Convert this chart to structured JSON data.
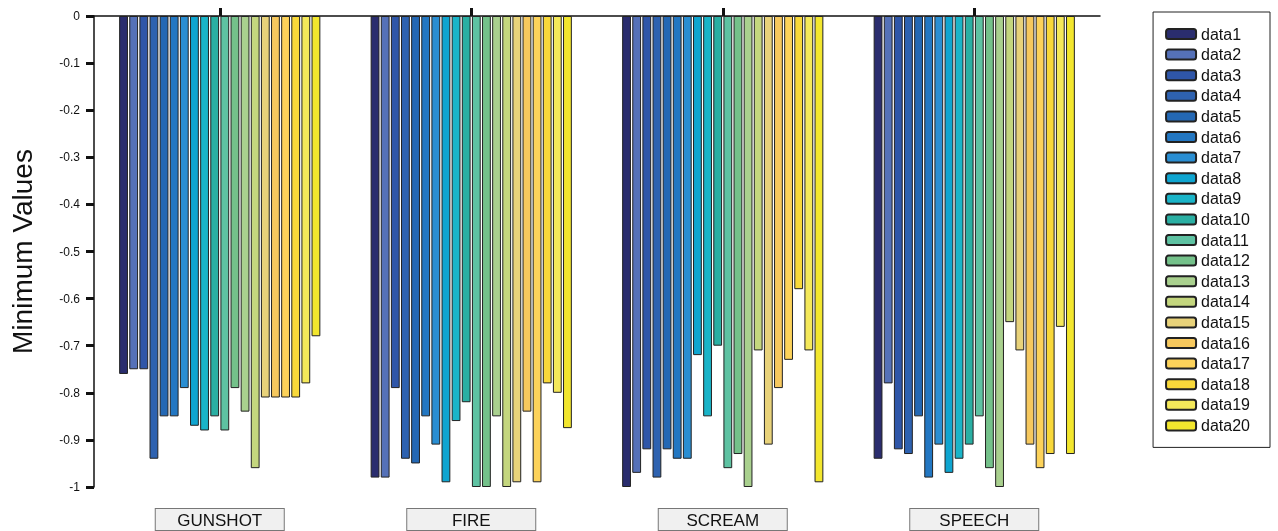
{
  "chart_data": {
    "type": "bar",
    "ylabel": "Minimum Values",
    "categories": [
      "GUNSHOT",
      "FIRE",
      "SCREAM",
      "SPEECH"
    ],
    "ylim": [
      -1,
      0
    ],
    "yticks": [
      -1,
      -0.9,
      -0.8,
      -0.7,
      -0.6,
      -0.5,
      -0.4,
      -0.3,
      -0.2,
      -0.1,
      0
    ],
    "grid": false,
    "legend": "right",
    "series": [
      {
        "name": "data1",
        "color": "#2a2d6e",
        "values": [
          -0.76,
          -0.98,
          -1.0,
          -0.94
        ]
      },
      {
        "name": "data2",
        "color": "#5571b8",
        "values": [
          -0.75,
          -0.98,
          -0.97,
          -0.78
        ]
      },
      {
        "name": "data3",
        "color": "#2f56a8",
        "values": [
          -0.75,
          -0.79,
          -0.92,
          -0.92
        ]
      },
      {
        "name": "data4",
        "color": "#2e62b0",
        "values": [
          -0.94,
          -0.94,
          -0.98,
          -0.93
        ]
      },
      {
        "name": "data5",
        "color": "#2468b4",
        "values": [
          -0.85,
          -0.95,
          -0.92,
          -0.85
        ]
      },
      {
        "name": "data6",
        "color": "#2377c2",
        "values": [
          -0.85,
          -0.85,
          -0.94,
          -0.98
        ]
      },
      {
        "name": "data7",
        "color": "#2a8ed2",
        "values": [
          -0.79,
          -0.91,
          -0.94,
          -0.91
        ]
      },
      {
        "name": "data8",
        "color": "#0fa5d0",
        "values": [
          -0.87,
          -0.99,
          -0.72,
          -0.97
        ]
      },
      {
        "name": "data9",
        "color": "#1ab4c8",
        "values": [
          -0.88,
          -0.86,
          -0.85,
          -0.94
        ]
      },
      {
        "name": "data10",
        "color": "#2aafa3",
        "values": [
          -0.85,
          -0.82,
          -0.7,
          -0.91
        ]
      },
      {
        "name": "data11",
        "color": "#5ec2a2",
        "values": [
          -0.88,
          -1.0,
          -0.96,
          -0.85
        ]
      },
      {
        "name": "data12",
        "color": "#74c18a",
        "values": [
          -0.79,
          -1.0,
          -0.93,
          -0.96
        ]
      },
      {
        "name": "data13",
        "color": "#a9d08e",
        "values": [
          -0.84,
          -0.85,
          -1.0,
          -1.0
        ]
      },
      {
        "name": "data14",
        "color": "#c4d67e",
        "values": [
          -0.96,
          -1.0,
          -0.71,
          -0.65
        ]
      },
      {
        "name": "data15",
        "color": "#e8d27a",
        "values": [
          -0.81,
          -0.99,
          -0.91,
          -0.71
        ]
      },
      {
        "name": "data16",
        "color": "#f6c85e",
        "values": [
          -0.81,
          -0.84,
          -0.79,
          -0.91
        ]
      },
      {
        "name": "data17",
        "color": "#fcd25a",
        "values": [
          -0.81,
          -0.99,
          -0.73,
          -0.96
        ]
      },
      {
        "name": "data18",
        "color": "#f8d83a",
        "values": [
          -0.81,
          -0.78,
          -0.58,
          -0.93
        ]
      },
      {
        "name": "data19",
        "color": "#f4e85a",
        "values": [
          -0.78,
          -0.8,
          -0.71,
          -0.66
        ]
      },
      {
        "name": "data20",
        "color": "#f2e62e",
        "values": [
          -0.68,
          -0.875,
          -0.99,
          -0.93
        ]
      }
    ]
  }
}
